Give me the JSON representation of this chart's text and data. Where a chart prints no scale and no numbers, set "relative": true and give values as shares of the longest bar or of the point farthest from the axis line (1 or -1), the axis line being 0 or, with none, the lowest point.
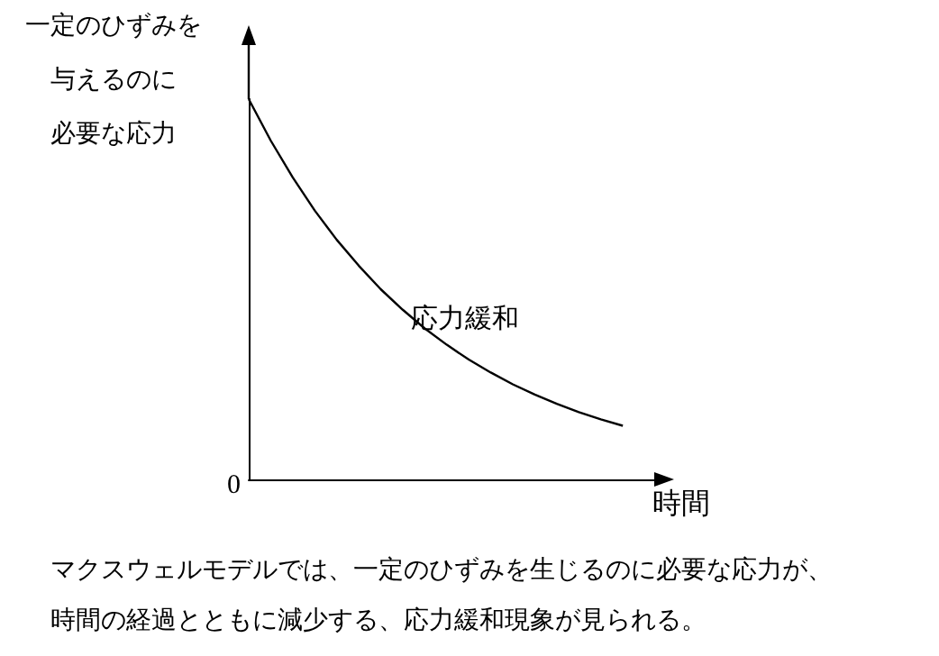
{
  "chart_data": {
    "type": "line",
    "relative": true,
    "ylabel": "一定のひずみを与えるのに必要な応力",
    "xlabel": "時間",
    "categories": [
      null,
      null,
      null,
      null,
      null,
      null,
      null,
      null,
      null,
      null,
      null,
      null,
      null,
      null,
      null,
      null,
      null,
      null,
      null,
      null
    ],
    "series": [
      {
        "color": "#000000",
        "values": [
          1,
          0.891,
          0.794,
          0.707,
          0.63,
          0.562,
          0.5,
          0.446,
          0.397,
          0.354,
          0.315,
          0.281,
          0.25,
          0.223,
          0.199,
          0.177,
          0.158,
          0.141,
          null,
          null
        ]
      }
    ],
    "marker": "none",
    "line_style": "solid",
    "grid": false,
    "annotations": [
      "応力緩和",
      "0",
      "マクスウェルモデルでは、一定のひずみを生じるのに必要な応力が、",
      "時間の経過とともに減少する、応力緩和現象が見られる。"
    ]
  }
}
